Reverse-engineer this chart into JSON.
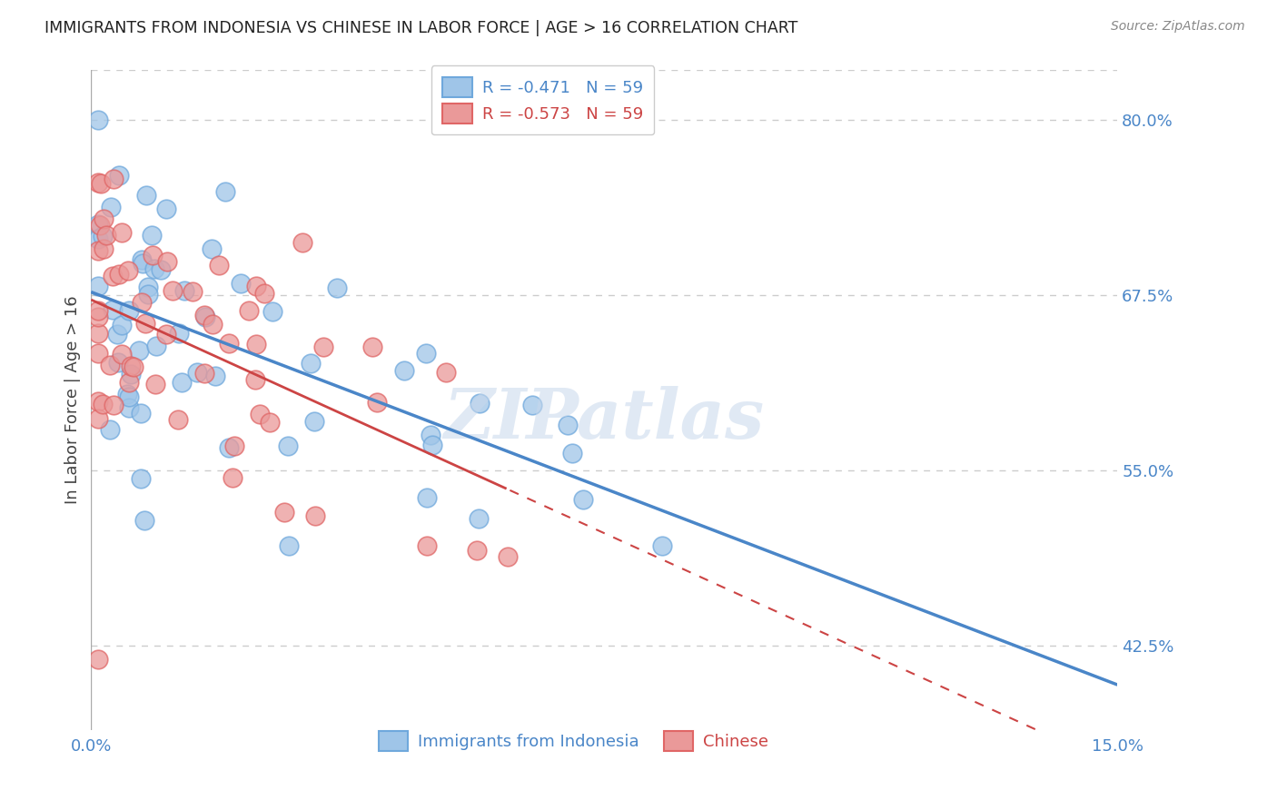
{
  "title": "IMMIGRANTS FROM INDONESIA VS CHINESE IN LABOR FORCE | AGE > 16 CORRELATION CHART",
  "source": "Source: ZipAtlas.com",
  "ylabel": "In Labor Force | Age > 16",
  "xlim": [
    0.0,
    0.15
  ],
  "ylim": [
    0.365,
    0.835
  ],
  "yticks_right": [
    0.8,
    0.675,
    0.55,
    0.425
  ],
  "ytick_right_labels": [
    "80.0%",
    "67.5%",
    "55.0%",
    "42.5%"
  ],
  "color_indonesia": "#9fc5e8",
  "color_chinese": "#ea9999",
  "color_indonesia_edge": "#6fa8dc",
  "color_chinese_edge": "#e06666",
  "color_line_indo": "#4a86c8",
  "color_line_chin": "#cc4444",
  "watermark": "ZIPatlas",
  "background_color": "#ffffff",
  "grid_color": "#cccccc",
  "title_color": "#222222",
  "axis_label_color": "#444444",
  "right_tick_color": "#4a86c8",
  "bottom_tick_color": "#4a86c8",
  "indo_r": "-0.471",
  "chin_r": "-0.573",
  "n": "59"
}
